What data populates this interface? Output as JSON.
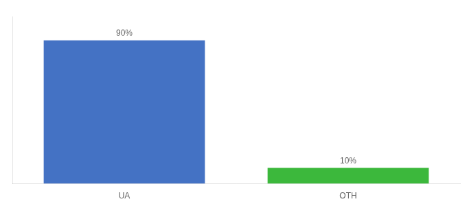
{
  "chart_data": {
    "type": "bar",
    "categories": [
      "UA",
      "OTH"
    ],
    "values": [
      90,
      10
    ],
    "value_labels": [
      "90%",
      "10%"
    ],
    "colors": [
      "#4472C4",
      "#3CB83C"
    ],
    "ylim": [
      0,
      105
    ],
    "grid": false,
    "data_labels": true,
    "tick_labels": "x"
  }
}
